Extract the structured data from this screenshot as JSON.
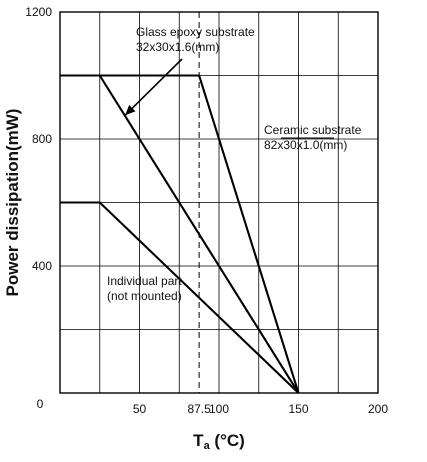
{
  "chart_data": {
    "type": "line",
    "xlabel": {
      "main": "T",
      "sub": "a",
      "unit": " (°C)"
    },
    "ylabel": "Power dissipation(mW)",
    "xlim": [
      0,
      200
    ],
    "ylim": [
      0,
      1200
    ],
    "x_ticks": [
      {
        "value": 50,
        "label": "50"
      },
      {
        "value": 87.5,
        "label": "87.5"
      },
      {
        "value": 100,
        "label": "100"
      },
      {
        "value": 150,
        "label": "150"
      },
      {
        "value": 200,
        "label": "200"
      }
    ],
    "origin_label": "0",
    "y_ticks": [
      {
        "value": 400,
        "label": "400"
      },
      {
        "value": 800,
        "label": "800"
      },
      {
        "value": 1200,
        "label": "1200"
      }
    ],
    "grid": true,
    "series": [
      {
        "id": "ceramic",
        "label_lines": [
          "Ceramic substrate",
          "82x30x1.0(mm)"
        ],
        "points": [
          [
            0,
            1000
          ],
          [
            87.5,
            1000
          ],
          [
            150,
            0
          ]
        ]
      },
      {
        "id": "glass",
        "label_lines": [
          "Glass epoxy substrate",
          "32x30x1.6(mm)"
        ],
        "points": [
          [
            0,
            1000
          ],
          [
            25,
            1000
          ],
          [
            150,
            0
          ]
        ]
      },
      {
        "id": "individual",
        "label_lines": [
          "Individual part",
          "(not mounted)"
        ],
        "points": [
          [
            0,
            600
          ],
          [
            25,
            600
          ],
          [
            150,
            0
          ]
        ]
      }
    ],
    "reference_line": {
      "x": 87.5,
      "style": "dashed"
    }
  }
}
